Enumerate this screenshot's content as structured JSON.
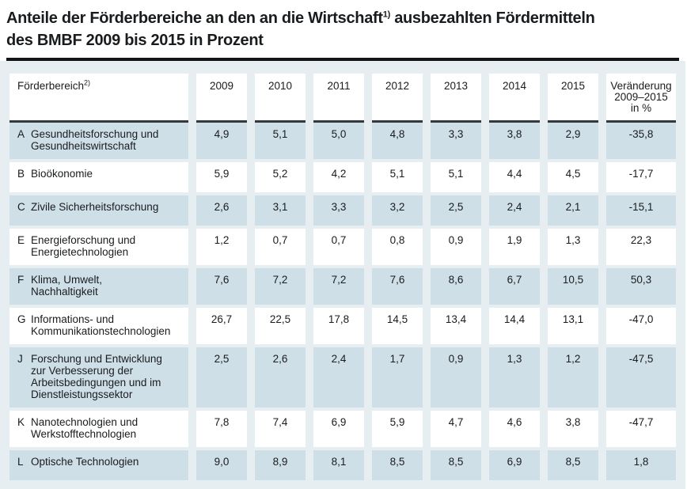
{
  "title": {
    "line1_pre_sup": "Anteile der Förderbereiche an den an die Wirtschaft",
    "line1_sup": "1)",
    "line1_post_sup": " ausbezahlten Fördermitteln",
    "line2": "des BMBF 2009 bis 2015 in Prozent"
  },
  "colors": {
    "table_background": "#e7eef2",
    "shaded_row": "#cfdfe7",
    "header_underline": "#33393d",
    "title_rule": "#121416",
    "text": "#191c1e"
  },
  "table": {
    "header": {
      "col1": "Förderbereich",
      "col1_sup": "2)",
      "years": [
        "2009",
        "2010",
        "2011",
        "2012",
        "2013",
        "2014",
        "2015"
      ],
      "change": "Veränderung\n2009–2015\nin %"
    },
    "rows": [
      {
        "letter": "A",
        "label": "Gesundheitsforschung und\nGesundheitswirtschaft",
        "values": [
          "4,9",
          "5,1",
          "5,0",
          "4,8",
          "3,3",
          "3,8",
          "2,9"
        ],
        "change": "-35,8"
      },
      {
        "letter": "B",
        "label": "Bioökonomie",
        "values": [
          "5,9",
          "5,2",
          "4,2",
          "5,1",
          "5,1",
          "4,4",
          "4,5"
        ],
        "change": "-17,7"
      },
      {
        "letter": "C",
        "label": "Zivile Sicherheitsforschung",
        "values": [
          "2,6",
          "3,1",
          "3,3",
          "3,2",
          "2,5",
          "2,4",
          "2,1"
        ],
        "change": "-15,1"
      },
      {
        "letter": "E",
        "label": "Energieforschung und\nEnergietechnologien",
        "values": [
          "1,2",
          "0,7",
          "0,7",
          "0,8",
          "0,9",
          "1,9",
          "1,3"
        ],
        "change": "22,3"
      },
      {
        "letter": "F",
        "label": "Klima, Umwelt,\nNachhaltigkeit",
        "values": [
          "7,6",
          "7,2",
          "7,2",
          "7,6",
          "8,6",
          "6,7",
          "10,5"
        ],
        "change": "50,3"
      },
      {
        "letter": "G",
        "label": "Informations- und\nKommunikationstechnologien",
        "values": [
          "26,7",
          "22,5",
          "17,8",
          "14,5",
          "13,4",
          "14,4",
          "13,1"
        ],
        "change": "-47,0"
      },
      {
        "letter": "J",
        "label": "Forschung und Entwicklung\nzur Verbesserung der\nArbeitsbedingungen und im\nDienstleistungssektor",
        "values": [
          "2,5",
          "2,6",
          "2,4",
          "1,7",
          "0,9",
          "1,3",
          "1,2"
        ],
        "change": "-47,5"
      },
      {
        "letter": "K",
        "label": "Nanotechnologien und\nWerkstofftechnologien",
        "values": [
          "7,8",
          "7,4",
          "6,9",
          "5,9",
          "4,7",
          "4,6",
          "3,8"
        ],
        "change": "-47,7"
      },
      {
        "letter": "L",
        "label": "Optische Technologien",
        "values": [
          "9,0",
          "8,9",
          "8,1",
          "8,5",
          "8,5",
          "6,9",
          "8,5"
        ],
        "change": "1,8"
      }
    ]
  }
}
